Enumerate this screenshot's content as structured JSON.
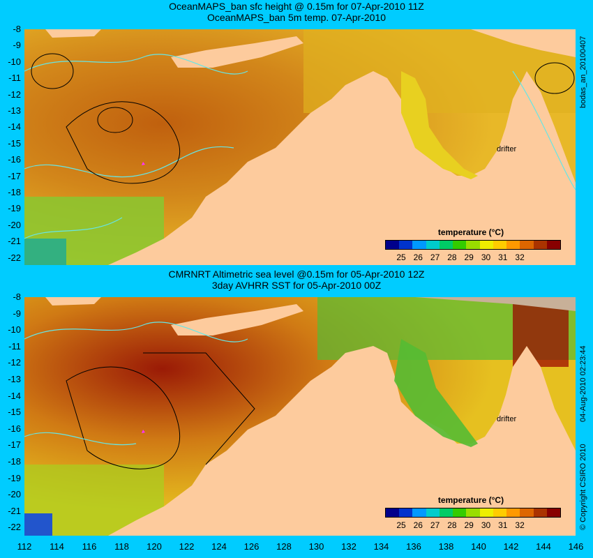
{
  "top": {
    "title_line1": "OceanMAPS_ban sfc height @ 0.15m for 07-Apr-2010 11Z",
    "title_line2": "OceanMAPS_ban 5m temp. 07-Apr-2010",
    "side_label": "bodas_an_20100407",
    "drifter_label": "drifter",
    "colorbar_title": "temperature (°C)"
  },
  "bottom": {
    "title_line1": "CMRNRT Altimetric sea level  @0.15m  for 05-Apr-2010 12Z",
    "title_line2": "3day AVHRR SST for 05-Apr-2010 00Z",
    "side_label": "04-Aug-2010 02:23:44",
    "copyright": "© Copyright CSIRO 2010",
    "drifter_label": "drifter",
    "colorbar_title": "temperature (°C)"
  },
  "colorbar_ticks": [
    "25",
    "26",
    "27",
    "28",
    "29",
    "30",
    "31",
    "32"
  ],
  "colorbar_colors": [
    "#00008b",
    "#0033cc",
    "#0099ff",
    "#00cccc",
    "#00cc66",
    "#33cc00",
    "#99dd00",
    "#eeee00",
    "#ffcc00",
    "#ff9900",
    "#dd6600",
    "#aa3300",
    "#880000"
  ],
  "y_ticks": [
    "-8",
    "-9",
    "-10",
    "-11",
    "-12",
    "-13",
    "-14",
    "-15",
    "-16",
    "-17",
    "-18",
    "-19",
    "-20",
    "-21",
    "-22"
  ],
  "x_ticks": [
    "112",
    "114",
    "116",
    "118",
    "120",
    "122",
    "124",
    "126",
    "128",
    "130",
    "132",
    "134",
    "136",
    "138",
    "140",
    "142",
    "144",
    "146"
  ],
  "colors": {
    "background": "#00ccff",
    "land": "#fdcb9d",
    "contour": "#66e6e6",
    "warm": "#c86a14",
    "mid": "#e2a020"
  }
}
